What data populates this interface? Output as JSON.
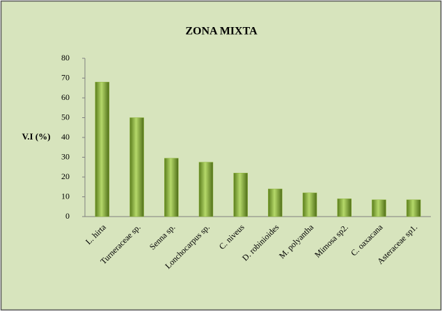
{
  "chart_data": {
    "type": "bar",
    "title": "ZONA MIXTA",
    "y_label": "V.I (%)",
    "categories": [
      "L. hirta",
      "Turneraceae sp.",
      "Senna sp.",
      "Lonchocarpus sp.",
      "C. niveus",
      "D. robinioides",
      "M. polyantha",
      "Mimosa sp2.",
      "C. oaxacana",
      "Asteraceae sp1."
    ],
    "values": [
      68,
      50,
      29.5,
      27.5,
      22,
      14,
      12,
      9,
      8.5,
      8.5
    ],
    "color": "#8db33a",
    "ylim": [
      0,
      80
    ],
    "yticks": [
      0,
      10,
      20,
      30,
      40,
      50,
      60,
      70,
      80
    ],
    "grid": false
  }
}
